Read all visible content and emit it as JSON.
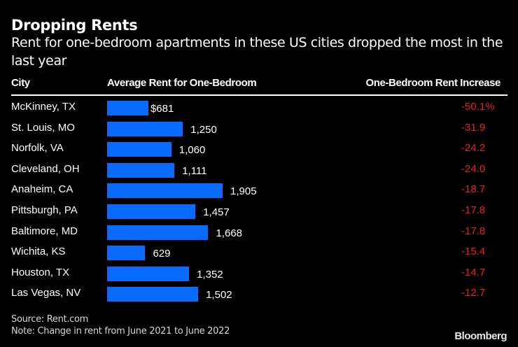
{
  "chart_data": {
    "type": "table",
    "title": "Dropping Rents",
    "subtitle": "Rent for one-bedroom apartments in these US cities dropped the most in the last year",
    "columns": [
      "City",
      "Average Rent for One-Bedroom",
      "One-Bedroom Rent Increase"
    ],
    "rows": [
      {
        "city": "McKinney, TX",
        "rent": 681,
        "rent_label": "$681",
        "increase": -50.1,
        "increase_label": "-50.1%"
      },
      {
        "city": "St. Louis, MO",
        "rent": 1250,
        "rent_label": "1,250",
        "increase": -31.9,
        "increase_label": "-31.9"
      },
      {
        "city": "Norfolk, VA",
        "rent": 1060,
        "rent_label": "1,060",
        "increase": -24.2,
        "increase_label": "-24.2"
      },
      {
        "city": "Cleveland, OH",
        "rent": 1111,
        "rent_label": "1,111",
        "increase": -24.0,
        "increase_label": "-24.0"
      },
      {
        "city": "Anaheim, CA",
        "rent": 1905,
        "rent_label": "1,905",
        "increase": -18.7,
        "increase_label": "-18.7"
      },
      {
        "city": "Pittsburgh, PA",
        "rent": 1457,
        "rent_label": "1,457",
        "increase": -17.8,
        "increase_label": "-17.8"
      },
      {
        "city": "Baltimore, MD",
        "rent": 1668,
        "rent_label": "1,668",
        "increase": -17.8,
        "increase_label": "-17.8"
      },
      {
        "city": "Wichita, KS",
        "rent": 629,
        "rent_label": "629",
        "increase": -15.4,
        "increase_label": "-15.4"
      },
      {
        "city": "Houston, TX",
        "rent": 1352,
        "rent_label": "1,352",
        "increase": -14.7,
        "increase_label": "-14.7"
      },
      {
        "city": "Las Vegas, NV",
        "rent": 1502,
        "rent_label": "1,502",
        "increase": -12.7,
        "increase_label": "-12.7"
      }
    ],
    "rent_max": 1905,
    "bar_color": "#0a6cff",
    "negative_color": "#e8221c"
  },
  "footer": {
    "source": "Source: Rent.com",
    "note": "Note: Change in rent from June 2021 to June 2022",
    "brand": "Bloomberg"
  }
}
